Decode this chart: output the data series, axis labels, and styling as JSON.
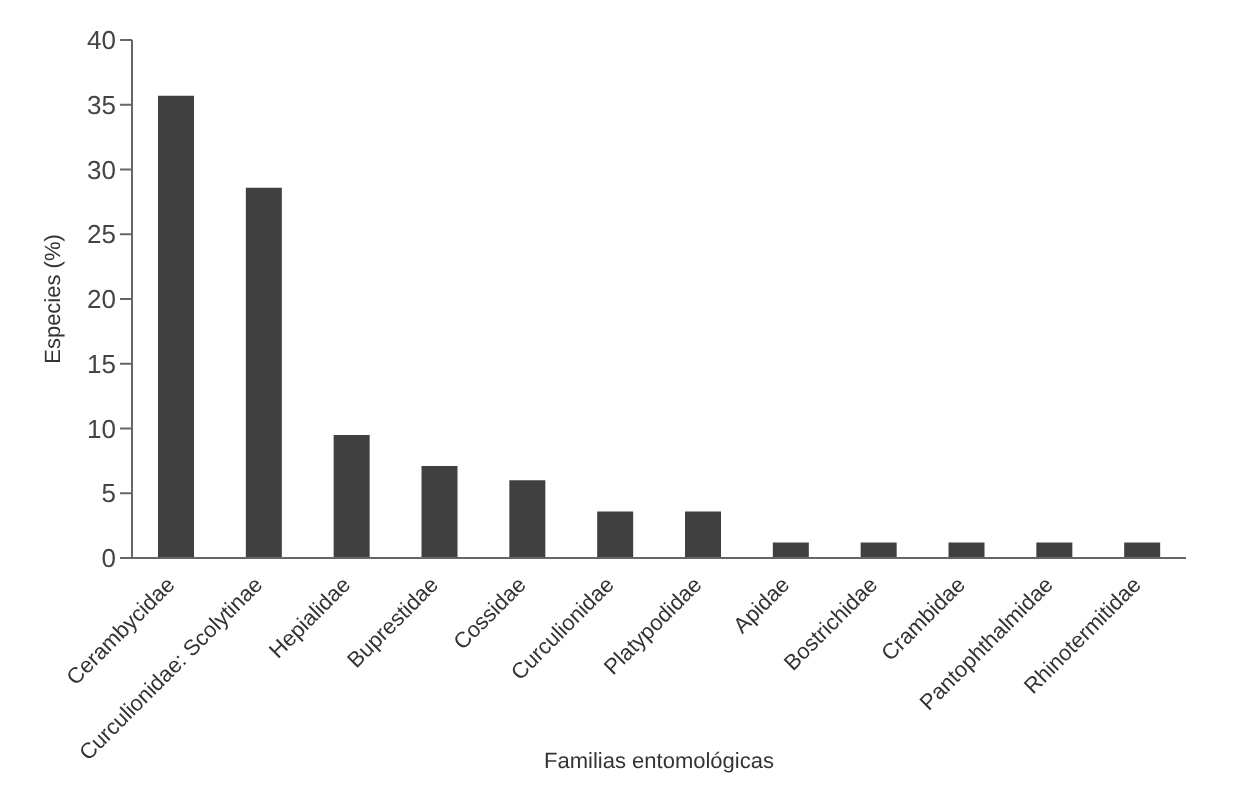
{
  "chart_data": {
    "type": "bar",
    "xlabel": "Familias entomológicas",
    "ylabel": "Especies (%)",
    "categories": [
      "Cerambycidae",
      "Curculionidae: Scolytinae",
      "Hepialidae",
      "Buprestidae",
      "Cossidae",
      "Curculionidae",
      "Platypodidae",
      "Apidae",
      "Bostrichidae",
      "Crambidae",
      "Pantophthalmidae",
      "Rhinotermitidae"
    ],
    "values": [
      35.7,
      28.6,
      9.5,
      7.1,
      6.0,
      3.6,
      3.6,
      1.2,
      1.2,
      1.2,
      1.2,
      1.2
    ],
    "color": "#404040",
    "ylim": [
      0,
      40
    ],
    "yticks": [
      0,
      5,
      10,
      15,
      20,
      25,
      30,
      35,
      40
    ],
    "grid": false,
    "legend": false
  }
}
